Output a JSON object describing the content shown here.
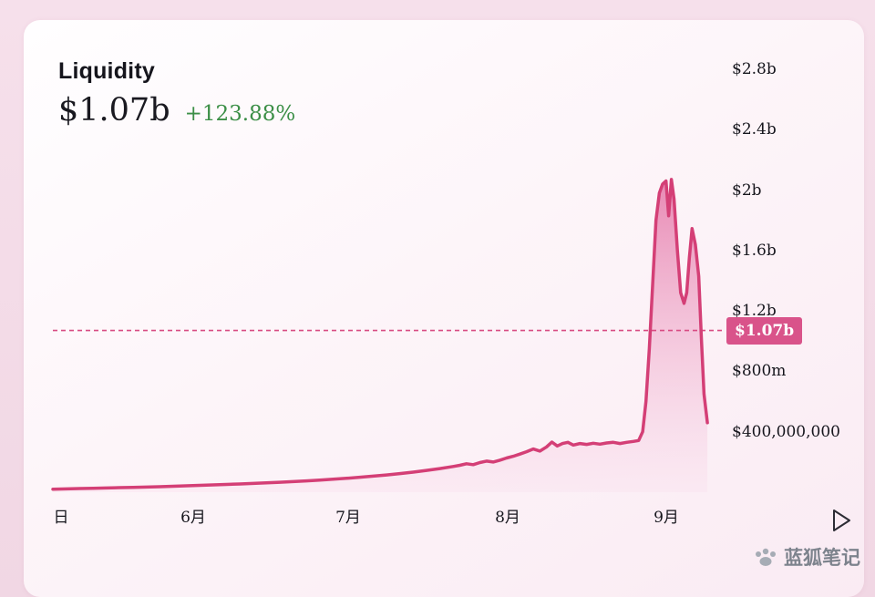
{
  "header": {
    "title": "Liquidity",
    "value": "$1.07b",
    "change": "+123.88%",
    "change_color": "#3c8f47"
  },
  "chart_data": {
    "type": "area",
    "title": "Liquidity",
    "unit": "USD millions",
    "ylim": [
      0,
      2900
    ],
    "grid": false,
    "legend": "none",
    "x": [
      0,
      2,
      4,
      6,
      8,
      10,
      12,
      14,
      16,
      18,
      20,
      22,
      24,
      26,
      28,
      30,
      32,
      34,
      36,
      38,
      40,
      42,
      44,
      46,
      48,
      50,
      52,
      54,
      56,
      58,
      60,
      61,
      62,
      63,
      64,
      65,
      66,
      67,
      68,
      69,
      70,
      71,
      72,
      73,
      74,
      74.8,
      75.6,
      76.4,
      77.2,
      78,
      79,
      80,
      81,
      82,
      83,
      84,
      85,
      86,
      87,
      87.8,
      88.4,
      88.9,
      89.4,
      89.9,
      90.4,
      90.9,
      91.4,
      91.9,
      92.3,
      92.7,
      93.1,
      93.6,
      94.1,
      94.6,
      95,
      95.4,
      95.8,
      96.3,
      96.8,
      97.2,
      97.6,
      98.1
    ],
    "values": [
      20,
      22,
      24,
      26,
      28,
      30,
      32,
      34,
      36,
      39,
      42,
      45,
      48,
      51,
      54,
      58,
      62,
      66,
      70,
      75,
      80,
      86,
      92,
      99,
      106,
      114,
      123,
      133,
      144,
      156,
      170,
      178,
      188,
      182,
      196,
      206,
      200,
      212,
      226,
      238,
      252,
      268,
      286,
      272,
      300,
      332,
      306,
      322,
      330,
      312,
      322,
      316,
      324,
      318,
      326,
      330,
      322,
      330,
      336,
      342,
      400,
      600,
      950,
      1380,
      1800,
      1980,
      2040,
      2060,
      1830,
      2070,
      1940,
      1600,
      1320,
      1250,
      1320,
      1550,
      1745,
      1640,
      1430,
      1020,
      650,
      460
    ],
    "x_axis": {
      "labels": [
        {
          "text": "日",
          "pos": 0.012
        },
        {
          "text": "6月",
          "pos": 0.21
        },
        {
          "text": "7月",
          "pos": 0.443
        },
        {
          "text": "8月",
          "pos": 0.682
        },
        {
          "text": "9月",
          "pos": 0.919
        }
      ]
    },
    "y_axis": {
      "labels": [
        {
          "text": "$2.8b",
          "value": 2800
        },
        {
          "text": "$2.4b",
          "value": 2400
        },
        {
          "text": "$2b",
          "value": 2000
        },
        {
          "text": "$1.6b",
          "value": 1600
        },
        {
          "text": "$1.2b",
          "value": 1200
        },
        {
          "text": "$800m",
          "value": 800
        },
        {
          "text": "$400,000,000",
          "value": 400
        }
      ]
    },
    "current": {
      "label": "$1.07b",
      "value": 1070
    },
    "colors": {
      "line": "#d43f76",
      "fill_top": "#e2699f",
      "fill_bottom": "#f9dcec",
      "dashed": "#d84b82",
      "badge_bg": "#d9538a",
      "badge_text": "#ffffff"
    }
  },
  "watermark": {
    "text": "蓝狐笔记"
  }
}
